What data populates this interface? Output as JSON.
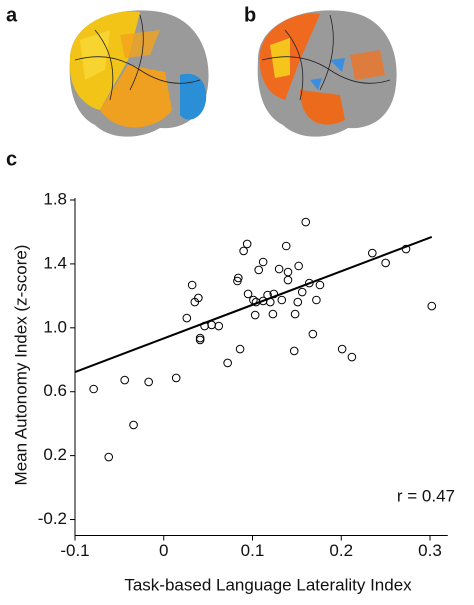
{
  "panel_labels": [
    "a",
    "b",
    "c"
  ],
  "chart_data": {
    "type": "scatter",
    "x_label": "Task-based Language Laterality Index",
    "y_label": "Mean Autonomy Index (z-score)",
    "annotation": "r = 0.47",
    "x": [
      -0.079,
      -0.062,
      -0.044,
      -0.034,
      -0.017,
      0.014,
      0.026,
      0.032,
      0.035,
      0.039,
      0.041,
      0.041,
      0.046,
      0.054,
      0.062,
      0.072,
      0.083,
      0.084,
      0.086,
      0.09,
      0.094,
      0.095,
      0.101,
      0.103,
      0.104,
      0.107,
      0.112,
      0.112,
      0.117,
      0.12,
      0.123,
      0.124,
      0.13,
      0.133,
      0.138,
      0.14,
      0.14,
      0.147,
      0.148,
      0.151,
      0.152,
      0.156,
      0.16,
      0.164,
      0.168,
      0.172,
      0.176,
      0.201,
      0.212,
      0.235,
      0.25,
      0.273,
      0.302
    ],
    "values": [
      0.617,
      0.191,
      0.673,
      0.392,
      0.661,
      0.686,
      1.061,
      1.268,
      1.161,
      1.187,
      0.924,
      0.936,
      1.011,
      1.018,
      1.011,
      0.78,
      1.293,
      1.312,
      0.867,
      1.481,
      1.525,
      1.212,
      1.174,
      1.08,
      1.161,
      1.362,
      1.412,
      1.168,
      1.205,
      1.161,
      1.086,
      1.212,
      1.368,
      1.174,
      1.512,
      1.299,
      1.349,
      0.855,
      1.086,
      1.161,
      1.387,
      1.224,
      1.662,
      1.28,
      0.961,
      1.174,
      1.268,
      0.867,
      0.817,
      1.468,
      1.406,
      1.493,
      1.136
    ],
    "trendline": {
      "x": [
        -0.1,
        0.302
      ],
      "values": [
        0.723,
        1.569
      ]
    },
    "xlim": [
      -0.1,
      0.32
    ],
    "ylim": [
      -0.3,
      1.8
    ],
    "xticks": [
      -0.1,
      0,
      0.1,
      0.2,
      0.3
    ],
    "yticks": [
      -0.2,
      0.2,
      0.6,
      {
        "value": 1,
        "label": "1.0"
      },
      1.4,
      1.8
    ]
  }
}
